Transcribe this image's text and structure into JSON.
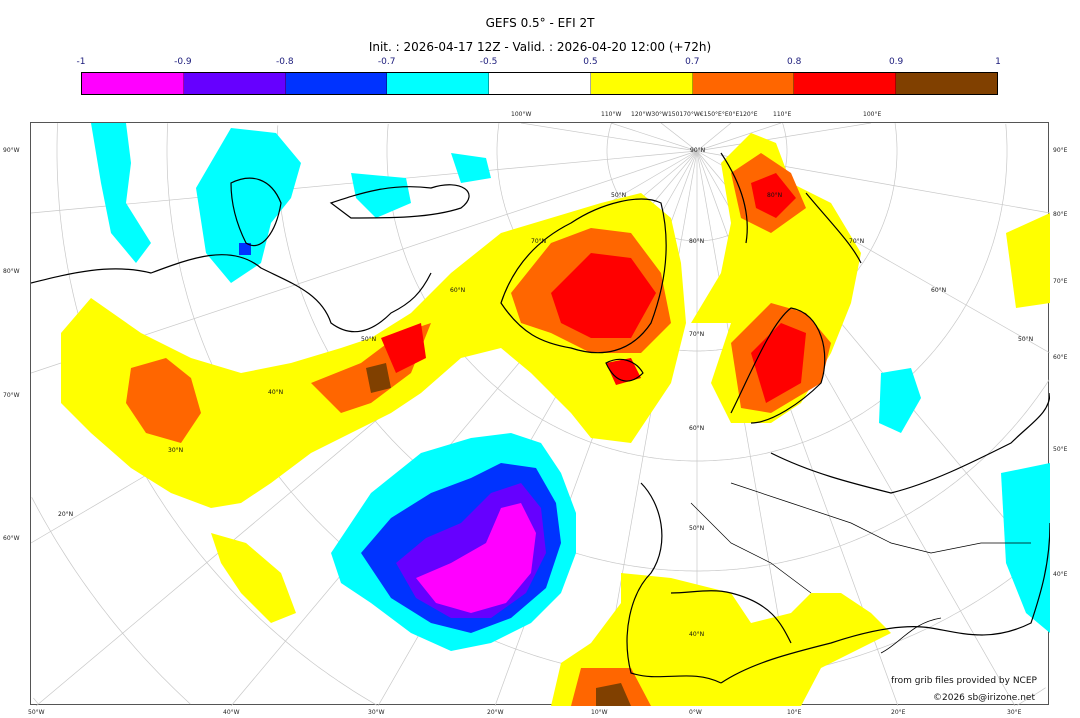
{
  "title": "GEFS 0.5° - EFI 2T",
  "subtitle": "Init. : 2026-04-17 12Z - Valid. : 2026-04-20 12:00 (+72h)",
  "colorbar": {
    "ticks": [
      "-1",
      "-0.9",
      "-0.8",
      "-0.7",
      "-0.5",
      "0.5",
      "0.7",
      "0.8",
      "0.9",
      "1"
    ],
    "colors": [
      "#ff00ff",
      "#6600ff",
      "#0033ff",
      "#00ffff",
      "#ffffff",
      "#ffff00",
      "#ff6600",
      "#ff0000",
      "#804000"
    ]
  },
  "map": {
    "top_labels": [
      "100°W",
      "110°W",
      "120°W30°W150170°W€150°E°E0°E120°E",
      "110°E",
      "100°E"
    ],
    "left_labels": [
      "90°W",
      "80°W",
      "70°W",
      "60°W"
    ],
    "right_labels": [
      "90°E",
      "80°E",
      "70°E",
      "60°E",
      "50°E",
      "40°E"
    ],
    "bottom_labels": [
      "50°W",
      "40°W",
      "30°W",
      "20°W",
      "10°W",
      "0°W",
      "10°E",
      "20°E",
      "30°E"
    ],
    "lat_labels": [
      "90°N",
      "80°N",
      "80°N",
      "70°N",
      "70°N",
      "70°N",
      "60°N",
      "60°N",
      "60°N",
      "50°N",
      "50°N",
      "50°N",
      "50°N",
      "40°N",
      "40°N",
      "30°N",
      "20°N"
    ]
  },
  "credits": {
    "source": "from grib files provided by NCEP",
    "copyright": "©2026 sb@irizone.net"
  }
}
